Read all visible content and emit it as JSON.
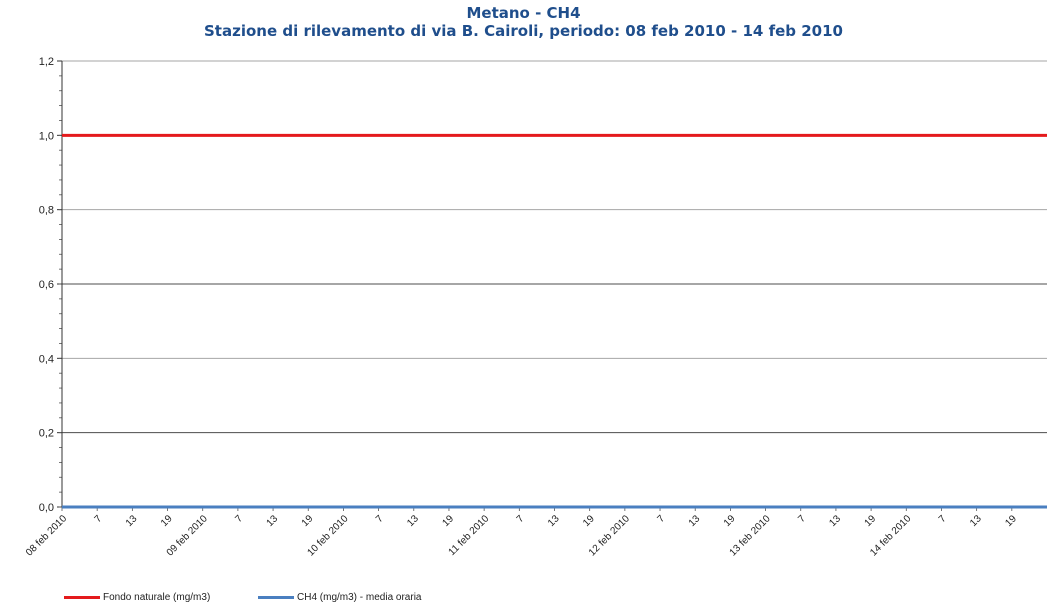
{
  "colors": {
    "fondo_line": "#e41a1c",
    "ch4_line": "#4a7fc0",
    "title": "#1f4e8c",
    "grid_dark": "#4d4d4d",
    "grid_light": "#a6a6a6"
  },
  "chart_data": {
    "type": "line",
    "title": "Metano - CH4",
    "subtitle": "Stazione di rilevamento di via B. Cairoli, periodo: 08 feb 2010 - 14 feb 2010",
    "xlabel": "",
    "ylabel": "",
    "ylim": [
      0,
      1.2
    ],
    "y_ticks": [
      "0,0",
      "0,2",
      "0,4",
      "0,6",
      "0,8",
      "1,0",
      "1,2"
    ],
    "x_ticks": [
      "08 feb 2010",
      "7",
      "13",
      "19",
      "09 feb 2010",
      "7",
      "13",
      "19",
      "10 feb 2010",
      "7",
      "13",
      "19",
      "11 feb 2010",
      "7",
      "13",
      "19",
      "12 feb 2010",
      "7",
      "13",
      "19",
      "13 feb 2010",
      "7",
      "13",
      "19",
      "14 feb 2010",
      "7",
      "13",
      "19"
    ],
    "grid": true,
    "legend_position": "bottom-left",
    "series": [
      {
        "name": "Fondo naturale  (mg/m3)",
        "values": [
          1.0,
          1.0
        ],
        "color": "#e41a1c"
      },
      {
        "name": "CH4 (mg/m3)  - media oraria",
        "values": [
          0.0,
          0.0
        ],
        "color": "#4a7fc0"
      }
    ]
  }
}
